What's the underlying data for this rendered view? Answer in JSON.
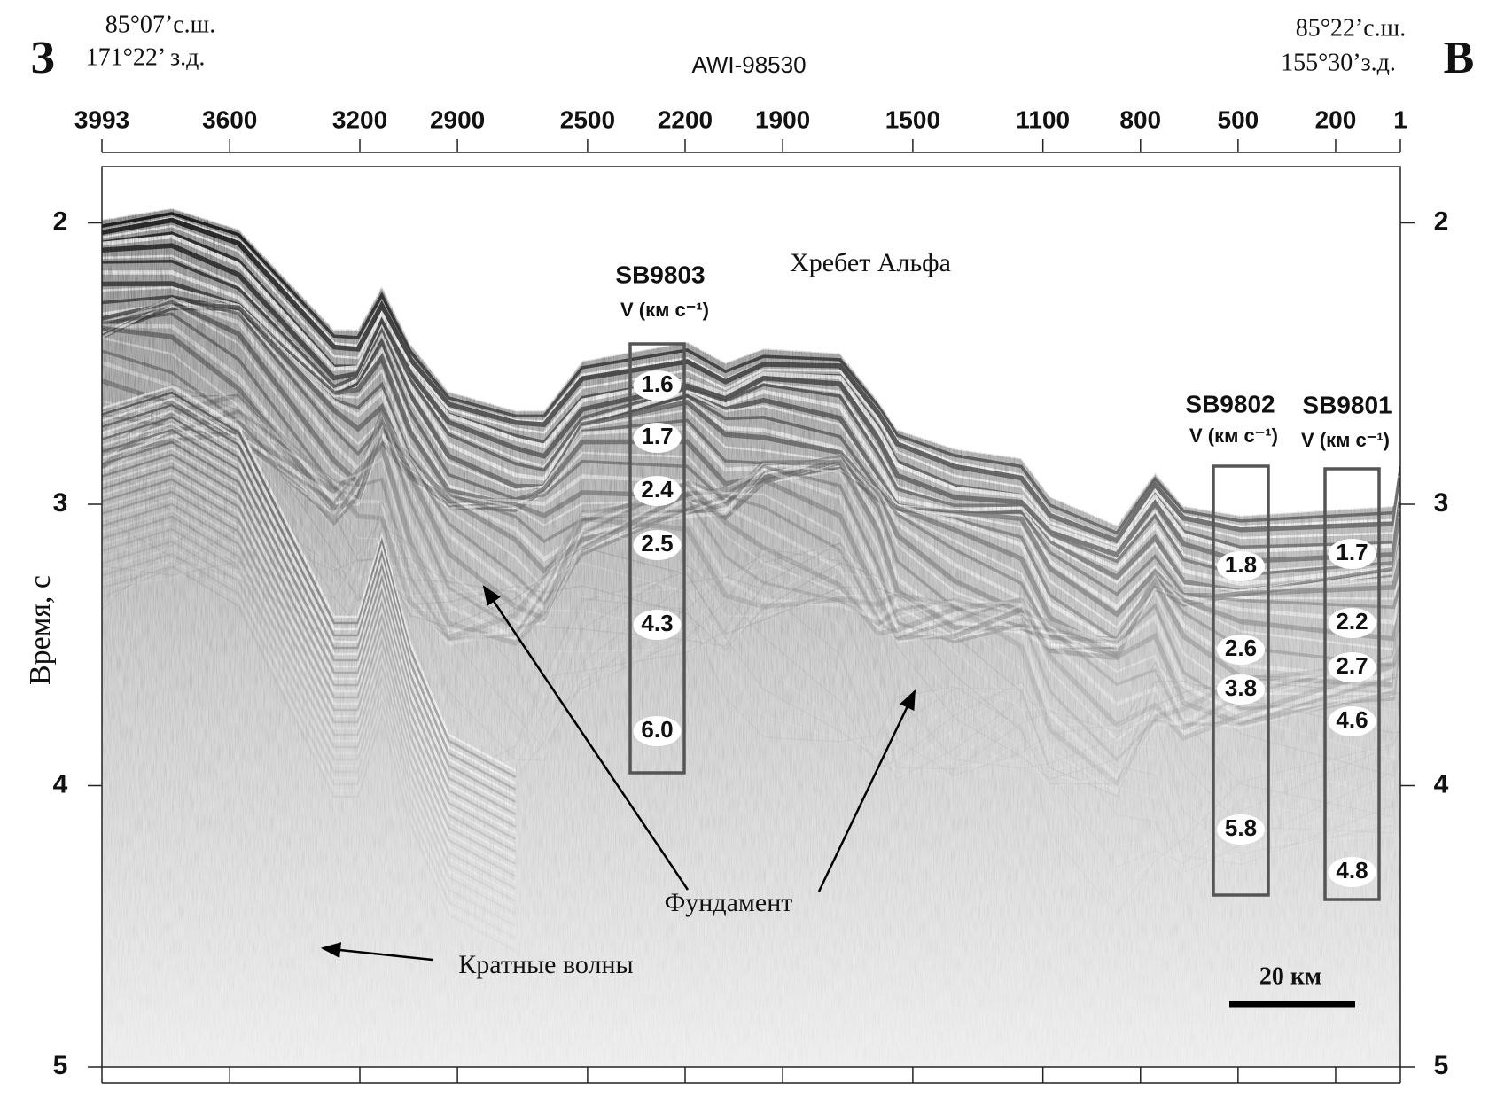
{
  "corner_left": {
    "letter": "З",
    "lat": "85°07’с.ш.",
    "lon": "171°22’ з.д."
  },
  "corner_right": {
    "letter": "В",
    "lat": "85°22’с.ш.",
    "lon": "155°30’з.д."
  },
  "profile": "AWI-98530",
  "shot_axis": {
    "lim": [
      3993,
      1
    ],
    "ticks": [
      3993,
      3600,
      3200,
      2900,
      2500,
      2200,
      1900,
      1500,
      1100,
      800,
      500,
      200,
      1
    ]
  },
  "time_axis": {
    "label": "Время, с",
    "lim": [
      1.8,
      5
    ],
    "ticks": [
      2,
      3,
      4,
      5
    ]
  },
  "labels": {
    "ridge": "Хребет Альфа",
    "basement": "Фундамент",
    "multiples": "Кратные волны",
    "scale": "20 км"
  },
  "stations": [
    {
      "name": "SB9803",
      "unit": "V (км с⁻¹)",
      "velocities": [
        "1.6",
        "1.7",
        "2.4",
        "2.5",
        "4.3",
        "6.0"
      ]
    },
    {
      "name": "SB9802",
      "unit": "V (км с⁻¹)",
      "velocities": [
        "1.8",
        "2.6",
        "3.8",
        "5.8"
      ]
    },
    {
      "name": "SB9801",
      "unit": "V (км с⁻¹)",
      "velocities": [
        "1.7",
        "2.2",
        "2.7",
        "4.6",
        "4.8"
      ]
    }
  ]
}
